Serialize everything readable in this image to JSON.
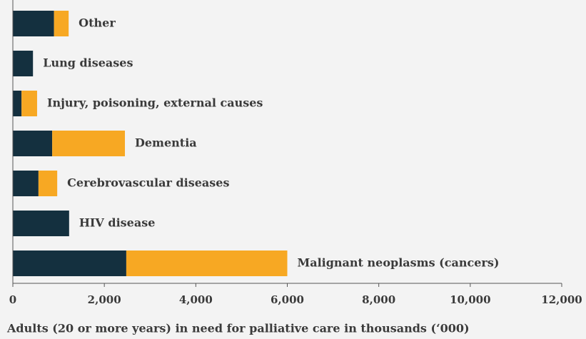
{
  "chart_data": {
    "type": "bar",
    "orientation": "horizontal",
    "stacked": true,
    "x_label": "Adults (20 or more years) in need for palliative care in thousands (‘000)",
    "categories": [
      "Other",
      "Lung diseases",
      "Injury, poisoning, external causes",
      "Dementia",
      "Cerebrovascular diseases",
      "HIV disease",
      "Malignant neoplasms (cancers)"
    ],
    "series": [
      {
        "color": "#14303f",
        "values": [
          900,
          440,
          190,
          860,
          560,
          1230,
          2480
        ]
      },
      {
        "color": "#f7a823",
        "values": [
          320,
          0,
          340,
          1590,
          410,
          0,
          3520
        ]
      }
    ],
    "xlim": [
      0,
      12000
    ],
    "xticks": [
      0,
      {
        "value": 2000,
        "label": "2,000"
      },
      {
        "value": 4000,
        "label": "4,000"
      },
      {
        "value": 6000,
        "label": "6,000"
      },
      {
        "value": 8000,
        "label": "8,000"
      },
      {
        "value": 10000,
        "label": "10,000"
      },
      {
        "value": 12000,
        "label": "12,000"
      }
    ]
  }
}
